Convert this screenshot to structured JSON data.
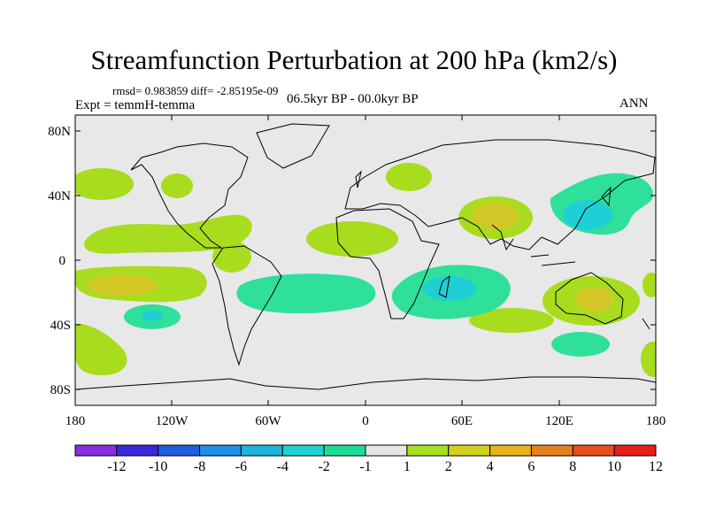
{
  "title": "Streamfunction Perturbation at 200 hPa (km2/s)",
  "rmsd_line": "rmsd= 0.983859 diff= -2.85195e-09",
  "expt_line": "Expt = temmH-temma",
  "period_line": "06.5kyr BP - 00.0kyr BP",
  "season": "ANN",
  "lat_labels": [
    "80N",
    "40N",
    "0",
    "40S",
    "80S"
  ],
  "lon_labels": [
    "180",
    "120W",
    "60W",
    "0",
    "60E",
    "120E",
    "180"
  ],
  "colorbar": {
    "labels": [
      "-12",
      "-10",
      "-8",
      "-6",
      "-4",
      "-2",
      "-1",
      "1",
      "2",
      "4",
      "6",
      "8",
      "10",
      "12"
    ],
    "colors": [
      "#8a2be2",
      "#3c28d8",
      "#1e5fe0",
      "#1e90e6",
      "#1eb4dc",
      "#1ed2d0",
      "#1edc96",
      "#e6e6e6",
      "#a6e01e",
      "#d2d21e",
      "#e6b41e",
      "#e6821e",
      "#e6501e",
      "#e61e1e"
    ]
  },
  "fill_colors": {
    "background": "#e8e8e8",
    "pos_weak": "#a8dc1e",
    "pos_mid": "#d4c828",
    "neg_weak": "#2ee09a",
    "neg_mid": "#1ecfd6"
  }
}
